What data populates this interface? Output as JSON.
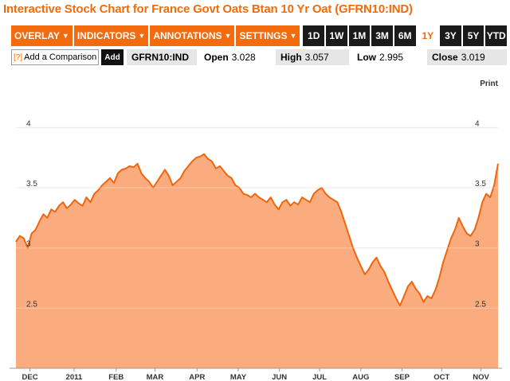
{
  "title": "Interactive Stock Chart for France Govt Oats Btan 10 Yr Oat (GFRN10:IND)",
  "toolbar": {
    "menus": [
      {
        "label": "OVERLAY",
        "caret": "▼"
      },
      {
        "label": "INDICATORS",
        "caret": "▼"
      },
      {
        "label": "ANNOTATIONS",
        "caret": "▼"
      },
      {
        "label": "SETTINGS",
        "caret": "▼"
      }
    ],
    "ranges": [
      "1D",
      "1W",
      "1M",
      "3M",
      "6M",
      "1Y",
      "3Y",
      "5Y",
      "YTD"
    ],
    "active_range": "1Y"
  },
  "infobar": {
    "compare_icon": "[?]",
    "compare_label": "Add a Comparison",
    "add_label": "Add",
    "ticker": "GFRN10:IND",
    "open_label": "Open",
    "open_value": "3.028",
    "high_label": "High",
    "high_value": "3.057",
    "low_label": "Low",
    "low_value": "2.995",
    "close_label": "Close",
    "close_value": "3.019"
  },
  "print_label": "Print",
  "colors": {
    "accent": "#f36b08",
    "area_fill": "#fbac7f",
    "line": "#f0650e",
    "active_bg": "#ffffff",
    "button_bg": "#1a1a1a"
  },
  "chart_data": {
    "type": "area",
    "title": "",
    "xlabel": "",
    "ylabel": "",
    "ylim": [
      2.0,
      4.0
    ],
    "yticks": [
      2.5,
      3,
      3.5,
      4
    ],
    "xticks": [
      "DEC",
      "2011",
      "FEB",
      "MAR",
      "APR",
      "MAY",
      "JUN",
      "JUL",
      "AUG",
      "SEP",
      "OCT",
      "NOV"
    ],
    "grid": true,
    "series": [
      {
        "values": [
          3.05,
          3.1,
          3.08,
          3.0,
          3.12,
          3.15,
          3.22,
          3.28,
          3.25,
          3.32,
          3.3,
          3.35,
          3.38,
          3.33,
          3.36,
          3.4,
          3.37,
          3.35,
          3.42,
          3.38,
          3.45,
          3.48,
          3.52,
          3.55,
          3.58,
          3.54,
          3.62,
          3.65,
          3.66,
          3.68,
          3.67,
          3.7,
          3.62,
          3.58,
          3.55,
          3.5,
          3.55,
          3.6,
          3.65,
          3.6,
          3.52,
          3.55,
          3.58,
          3.64,
          3.68,
          3.72,
          3.75,
          3.76,
          3.78,
          3.74,
          3.72,
          3.66,
          3.68,
          3.64,
          3.6,
          3.58,
          3.52,
          3.5,
          3.45,
          3.44,
          3.42,
          3.45,
          3.42,
          3.4,
          3.38,
          3.42,
          3.36,
          3.32,
          3.38,
          3.4,
          3.35,
          3.38,
          3.36,
          3.42,
          3.4,
          3.38,
          3.45,
          3.48,
          3.5,
          3.45,
          3.42,
          3.4,
          3.38,
          3.3,
          3.2,
          3.1,
          3.0,
          2.92,
          2.85,
          2.78,
          2.82,
          2.88,
          2.92,
          2.85,
          2.8,
          2.72,
          2.65,
          2.58,
          2.52,
          2.6,
          2.68,
          2.72,
          2.66,
          2.62,
          2.55,
          2.6,
          2.58,
          2.65,
          2.75,
          2.88,
          2.98,
          3.08,
          3.15,
          3.25,
          3.18,
          3.12,
          3.1,
          3.15,
          3.25,
          3.38,
          3.45,
          3.42,
          3.52,
          3.7
        ]
      }
    ]
  }
}
